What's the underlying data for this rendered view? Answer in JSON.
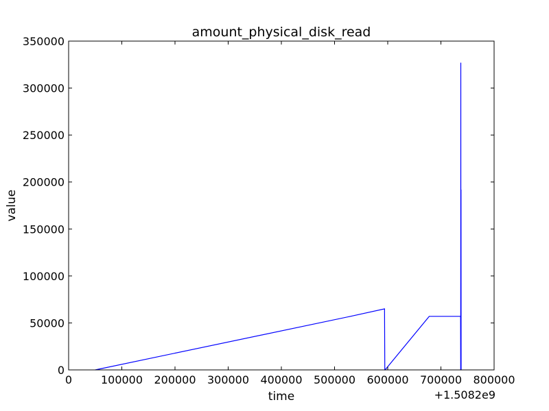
{
  "chart_data": {
    "type": "line",
    "title": "amount_physical_disk_read",
    "xlabel": "time",
    "ylabel": "value",
    "x_offset_label": "+1.5082e9",
    "xlim": [
      0,
      800000
    ],
    "ylim": [
      0,
      350000
    ],
    "x_ticks": [
      0,
      100000,
      200000,
      300000,
      400000,
      500000,
      600000,
      700000,
      800000
    ],
    "x_tick_labels": [
      "0",
      "100000",
      "200000",
      "300000",
      "400000",
      "500000",
      "600000",
      "700000",
      "800000"
    ],
    "y_ticks": [
      0,
      50000,
      100000,
      150000,
      200000,
      250000,
      300000,
      350000
    ],
    "y_tick_labels": [
      "0",
      "50000",
      "100000",
      "150000",
      "200000",
      "250000",
      "300000",
      "350000"
    ],
    "grid": false,
    "series": [
      {
        "name": "amount_physical_disk_read",
        "color": "#0000ff",
        "x": [
          50000,
          530000,
          594000,
          594500,
          595000,
          678000,
          737000,
          737200,
          737400,
          737600,
          737800,
          738000,
          738200
        ],
        "y": [
          0,
          57000,
          65000,
          0,
          0,
          57000,
          57000,
          0,
          327000,
          0,
          192000,
          0,
          0
        ]
      }
    ]
  }
}
